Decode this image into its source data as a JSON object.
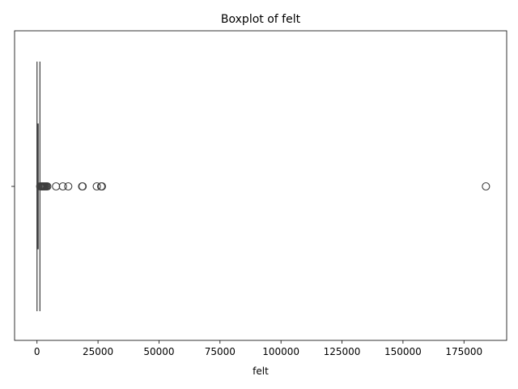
{
  "chart_data": {
    "type": "box",
    "title": "Boxplot of felt",
    "xlabel": "felt",
    "ylabel": "",
    "xlim": [
      -9200,
      192500
    ],
    "xticks": [
      0,
      25000,
      50000,
      75000,
      100000,
      125000,
      150000,
      175000
    ],
    "xtick_labels": [
      "0",
      "25000",
      "50000",
      "75000",
      "100000",
      "125000",
      "150000",
      "175000"
    ],
    "ytick_labels": [
      ""
    ],
    "grid": false,
    "box": {
      "whisker_low": 0,
      "q1": 40,
      "median": 180,
      "q3": 500,
      "whisker_high": 1200
    },
    "outliers": [
      1300,
      1500,
      1700,
      1900,
      2100,
      2300,
      2500,
      2800,
      3100,
      3400,
      3800,
      4200,
      7800,
      10600,
      12800,
      18500,
      18700,
      24500,
      26300,
      26600,
      184000
    ],
    "colors": {
      "box_edge": "#3f3f3f",
      "outlier_edge": "#3f3f3f"
    }
  }
}
